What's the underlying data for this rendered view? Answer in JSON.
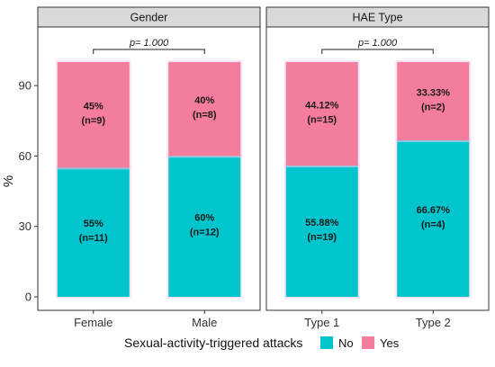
{
  "chart_data": {
    "type": "bar",
    "stacked": true,
    "ylabel": "%",
    "ylim": [
      0,
      100
    ],
    "yticks": [
      0,
      30,
      60,
      90
    ],
    "grid": false,
    "legend": {
      "title": "Sexual-activity-triggered attacks",
      "position": "bottom",
      "items": [
        {
          "name": "No",
          "color": "#00C5CD"
        },
        {
          "name": "Yes",
          "color": "#F47C9C"
        }
      ]
    },
    "colors": {
      "No": "#00C5CD",
      "Yes": "#F47C9C",
      "segment_outline": "#F2CDF0",
      "strip_fill": "#D9D9D9"
    },
    "panels": [
      {
        "strip": "Gender",
        "pvalue": "p= 1.000",
        "categories": [
          "Female",
          "Male"
        ],
        "series": [
          {
            "name": "No",
            "values": [
              55,
              60
            ],
            "labels": [
              "55%\n(n=11)",
              "60%\n(n=12)"
            ]
          },
          {
            "name": "Yes",
            "values": [
              45,
              40
            ],
            "labels": [
              "45%\n(n=9)",
              "40%\n(n=8)"
            ]
          }
        ]
      },
      {
        "strip": "HAE Type",
        "pvalue": "p= 1.000",
        "categories": [
          "Type 1",
          "Type 2"
        ],
        "series": [
          {
            "name": "No",
            "values": [
              55.88,
              66.67
            ],
            "labels": [
              "55.88%\n(n=19)",
              "66.67%\n(n=4)"
            ]
          },
          {
            "name": "Yes",
            "values": [
              44.12,
              33.33
            ],
            "labels": [
              "44.12%\n(n=15)",
              "33.33%\n(n=2)"
            ]
          }
        ]
      }
    ]
  }
}
